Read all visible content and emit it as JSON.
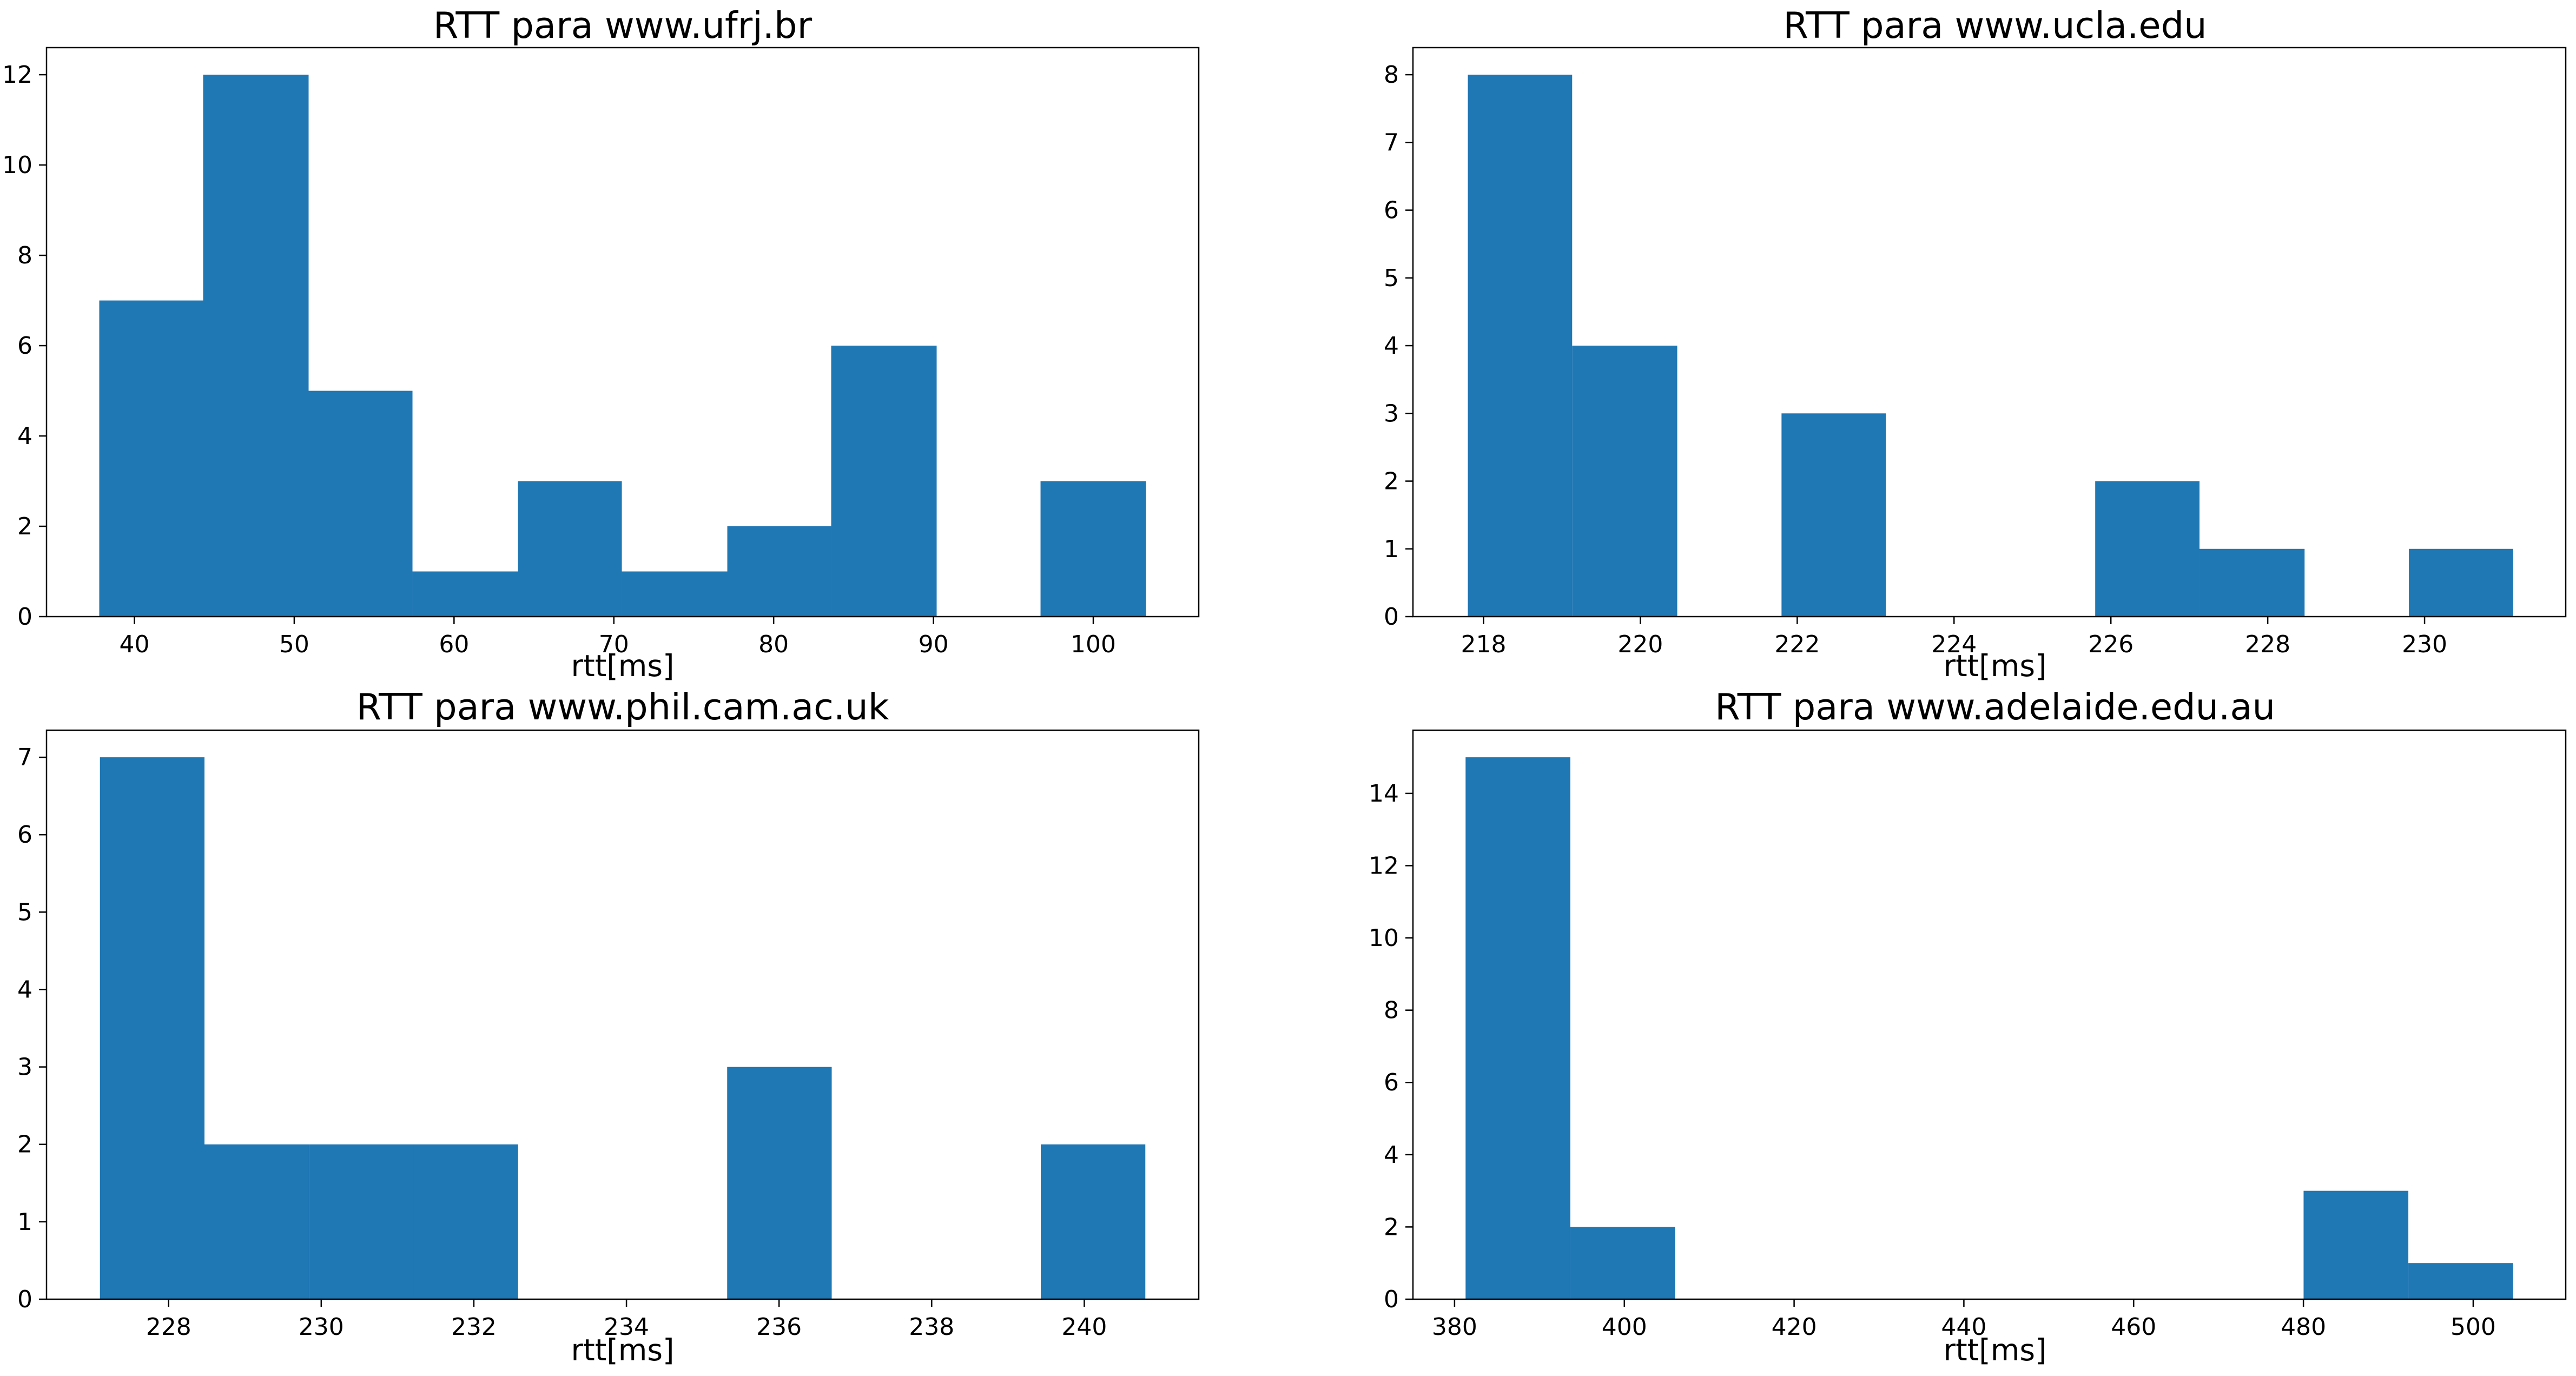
{
  "colors": {
    "bar": "#1f77b4",
    "axes": "#000000",
    "background": "#ffffff"
  },
  "chart_data": [
    {
      "type": "bar",
      "title": "RTT para www.ufrj.br",
      "xlabel": "rtt[ms]",
      "ylabel": "",
      "grid": false,
      "xlim": [
        34.5,
        106.6
      ],
      "ylim": [
        0,
        12.6
      ],
      "xticks": [
        40,
        50,
        60,
        70,
        80,
        90,
        100
      ],
      "yticks": [
        0,
        2,
        4,
        6,
        8,
        10,
        12
      ],
      "bins": [
        {
          "x0": 37.8,
          "x1": 44.3,
          "count": 7
        },
        {
          "x0": 44.3,
          "x1": 50.9,
          "count": 12
        },
        {
          "x0": 50.9,
          "x1": 57.4,
          "count": 5
        },
        {
          "x0": 57.4,
          "x1": 64.0,
          "count": 1
        },
        {
          "x0": 64.0,
          "x1": 70.5,
          "count": 3
        },
        {
          "x0": 70.5,
          "x1": 77.1,
          "count": 1
        },
        {
          "x0": 77.1,
          "x1": 83.6,
          "count": 2
        },
        {
          "x0": 83.6,
          "x1": 90.2,
          "count": 6
        },
        {
          "x0": 90.2,
          "x1": 96.7,
          "count": 0
        },
        {
          "x0": 96.7,
          "x1": 103.3,
          "count": 3
        }
      ]
    },
    {
      "type": "bar",
      "title": "RTT para www.ucla.edu",
      "xlabel": "rtt[ms]",
      "ylabel": "",
      "grid": false,
      "xlim": [
        217.1,
        231.8
      ],
      "ylim": [
        0,
        8.4
      ],
      "xticks": [
        218,
        220,
        222,
        224,
        226,
        228,
        230
      ],
      "yticks": [
        0,
        1,
        2,
        3,
        4,
        5,
        6,
        7,
        8
      ],
      "bins": [
        {
          "x0": 217.8,
          "x1": 219.13,
          "count": 8
        },
        {
          "x0": 219.13,
          "x1": 220.47,
          "count": 4
        },
        {
          "x0": 220.47,
          "x1": 221.8,
          "count": 0
        },
        {
          "x0": 221.8,
          "x1": 223.13,
          "count": 3
        },
        {
          "x0": 223.13,
          "x1": 224.47,
          "count": 0
        },
        {
          "x0": 224.47,
          "x1": 225.8,
          "count": 0
        },
        {
          "x0": 225.8,
          "x1": 227.13,
          "count": 2
        },
        {
          "x0": 227.13,
          "x1": 228.47,
          "count": 1
        },
        {
          "x0": 228.47,
          "x1": 229.8,
          "count": 0
        },
        {
          "x0": 229.8,
          "x1": 231.13,
          "count": 1
        }
      ]
    },
    {
      "type": "bar",
      "title": "RTT para www.phil.cam.ac.uk",
      "xlabel": "rtt[ms]",
      "ylabel": "",
      "grid": false,
      "xlim": [
        226.4,
        241.5
      ],
      "ylim": [
        0,
        7.35
      ],
      "xticks": [
        228,
        230,
        232,
        234,
        236,
        238,
        240
      ],
      "yticks": [
        0,
        1,
        2,
        3,
        4,
        5,
        6,
        7
      ],
      "bins": [
        {
          "x0": 227.1,
          "x1": 228.47,
          "count": 7
        },
        {
          "x0": 228.47,
          "x1": 229.84,
          "count": 2
        },
        {
          "x0": 229.84,
          "x1": 231.21,
          "count": 2
        },
        {
          "x0": 231.21,
          "x1": 232.58,
          "count": 2
        },
        {
          "x0": 232.58,
          "x1": 233.95,
          "count": 0
        },
        {
          "x0": 233.95,
          "x1": 235.32,
          "count": 0
        },
        {
          "x0": 235.32,
          "x1": 236.69,
          "count": 3
        },
        {
          "x0": 236.69,
          "x1": 238.06,
          "count": 0
        },
        {
          "x0": 238.06,
          "x1": 239.43,
          "count": 0
        },
        {
          "x0": 239.43,
          "x1": 240.8,
          "count": 2
        }
      ]
    },
    {
      "type": "bar",
      "title": "RTT para www.adelaide.edu.au",
      "xlabel": "rtt[ms]",
      "ylabel": "",
      "grid": false,
      "xlim": [
        375.1,
        510.9
      ],
      "ylim": [
        0,
        15.75
      ],
      "xticks": [
        380,
        400,
        420,
        440,
        460,
        480,
        500
      ],
      "yticks": [
        0,
        2,
        4,
        6,
        8,
        10,
        12,
        14
      ],
      "bins": [
        {
          "x0": 381.3,
          "x1": 393.64,
          "count": 15
        },
        {
          "x0": 393.64,
          "x1": 405.98,
          "count": 2
        },
        {
          "x0": 405.98,
          "x1": 418.32,
          "count": 0
        },
        {
          "x0": 418.32,
          "x1": 430.66,
          "count": 0
        },
        {
          "x0": 430.66,
          "x1": 443.0,
          "count": 0
        },
        {
          "x0": 443.0,
          "x1": 455.34,
          "count": 0
        },
        {
          "x0": 455.34,
          "x1": 467.68,
          "count": 0
        },
        {
          "x0": 467.68,
          "x1": 480.02,
          "count": 0
        },
        {
          "x0": 480.02,
          "x1": 492.36,
          "count": 3
        },
        {
          "x0": 492.36,
          "x1": 504.7,
          "count": 1
        }
      ]
    }
  ]
}
